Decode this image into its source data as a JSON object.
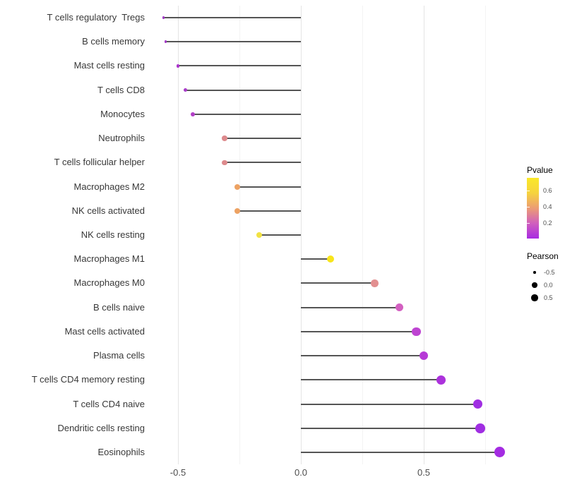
{
  "chart_data": {
    "type": "lollipop",
    "title": "",
    "xlabel": "",
    "ylabel": "",
    "xlim": [
      -0.61,
      1.06
    ],
    "baseline": 0.0,
    "grid": "on",
    "x_ticks": [
      {
        "label": "-0.5",
        "value": -0.5
      },
      {
        "label": "0.0",
        "value": 0.0
      },
      {
        "label": "0.5",
        "value": 0.5
      }
    ],
    "major_gridlines": [
      -0.5,
      0.0,
      0.5
    ],
    "minor_gridlines": [
      -0.25,
      0.25,
      0.75
    ],
    "size_encoding": "Pearson",
    "color_encoding": "Pvalue",
    "rows": [
      {
        "name": "T cells regulatory  Tregs",
        "pearson": -0.56,
        "color": "#A23AC6",
        "diameter": 3.2
      },
      {
        "name": "B cells memory",
        "pearson": -0.55,
        "color": "#A23AC6",
        "diameter": 3.6
      },
      {
        "name": "Mast cells resting",
        "pearson": -0.5,
        "color": "#AB35CC",
        "diameter": 4.6
      },
      {
        "name": "T cells CD8",
        "pearson": -0.47,
        "color": "#A83BC8",
        "diameter": 5.4
      },
      {
        "name": "Monocytes",
        "pearson": -0.44,
        "color": "#B13EC6",
        "diameter": 6.0
      },
      {
        "name": "Neutrophils",
        "pearson": -0.31,
        "color": "#DD8A8D",
        "diameter": 7.4
      },
      {
        "name": "T cells follicular helper",
        "pearson": -0.31,
        "color": "#DD8A8D",
        "diameter": 7.4
      },
      {
        "name": "Macrophages M2",
        "pearson": -0.26,
        "color": "#EDA263",
        "diameter": 8.0
      },
      {
        "name": "NK cells activated",
        "pearson": -0.26,
        "color": "#EDA263",
        "diameter": 8.0
      },
      {
        "name": "NK cells resting",
        "pearson": -0.17,
        "color": "#F2E243",
        "diameter": 8.6
      },
      {
        "name": "Macrophages M1",
        "pearson": 0.12,
        "color": "#F8E51B",
        "diameter": 10.0
      },
      {
        "name": "Macrophages M0",
        "pearson": 0.3,
        "color": "#E28F90",
        "diameter": 10.4
      },
      {
        "name": "B cells naive",
        "pearson": 0.4,
        "color": "#D360C1",
        "diameter": 11.2
      },
      {
        "name": "Mast cells activated",
        "pearson": 0.47,
        "color": "#BE44D2",
        "diameter": 12.4
      },
      {
        "name": "Plasma cells",
        "pearson": 0.5,
        "color": "#B63AD6",
        "diameter": 12.6
      },
      {
        "name": "T cells CD4 memory resting",
        "pearson": 0.57,
        "color": "#AC32DC",
        "diameter": 13.0
      },
      {
        "name": "T cells CD4 naive",
        "pearson": 0.72,
        "color": "#A02EE2",
        "diameter": 13.6
      },
      {
        "name": "Dendritic cells resting",
        "pearson": 0.73,
        "color": "#A02EE2",
        "diameter": 13.6
      },
      {
        "name": "Eosinophils",
        "pearson": 0.81,
        "color": "#A42CE2",
        "diameter": 15.0
      }
    ]
  },
  "legend_pvalue": {
    "title": "Pvalue",
    "tick_labels": [
      "0.6",
      "0.4",
      "0.2"
    ],
    "gradient_top_to_bottom": [
      "#FAE928",
      "#F6D33E",
      "#EC9C74",
      "#D05EBE",
      "#A82BE2"
    ]
  },
  "legend_pearson": {
    "title": "Pearson",
    "items": [
      {
        "label": "-0.5",
        "diameter": 3.5
      },
      {
        "label": "0.0",
        "diameter": 7.5
      },
      {
        "label": "0.5",
        "diameter": 9.5
      }
    ]
  }
}
